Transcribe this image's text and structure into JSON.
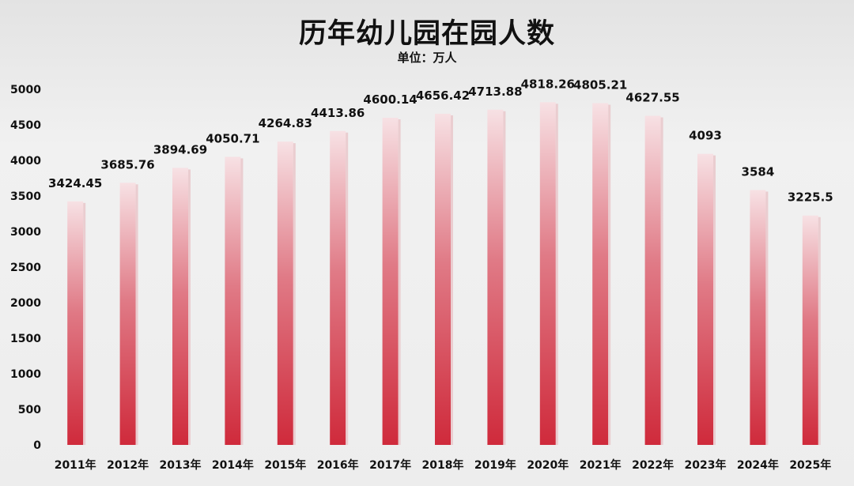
{
  "chart_data": {
    "type": "bar",
    "title": "历年幼儿园在园人数",
    "subtitle": "单位：万人",
    "categories": [
      "2011年",
      "2012年",
      "2013年",
      "2014年",
      "2015年",
      "2016年",
      "2017年",
      "2018年",
      "2019年",
      "2020年",
      "2021年",
      "2022年",
      "2023年",
      "2024年",
      "2025年"
    ],
    "values": [
      3424.45,
      3685.76,
      3894.69,
      4050.71,
      4264.83,
      4413.86,
      4600.14,
      4656.42,
      4713.88,
      4818.26,
      4805.21,
      4627.55,
      4093,
      3584,
      3225.5
    ],
    "value_labels": [
      "3424.45",
      "3685.76",
      "3894.69",
      "4050.71",
      "4264.83",
      "4413.86",
      "4600.14",
      "4656.42",
      "4713.88",
      "4818.26",
      "4805.21",
      "4627.55",
      "4093",
      "3584",
      "3225.5"
    ],
    "ylim": [
      0,
      5000
    ],
    "yticks": [
      0,
      500,
      1000,
      1500,
      2000,
      2500,
      3000,
      3500,
      4000,
      4500,
      5000
    ],
    "ytick_labels": [
      "0",
      "500",
      "1000",
      "1500",
      "2000",
      "2500",
      "3000",
      "3500",
      "4000",
      "4500",
      "5000"
    ],
    "grid": false,
    "legend": "none",
    "colors": {
      "bar_top": "#f7e1e4",
      "bar_mid": "#e07a86",
      "bar_bottom": "#cf2a3b",
      "bar_side": "#e8c4c8"
    }
  }
}
